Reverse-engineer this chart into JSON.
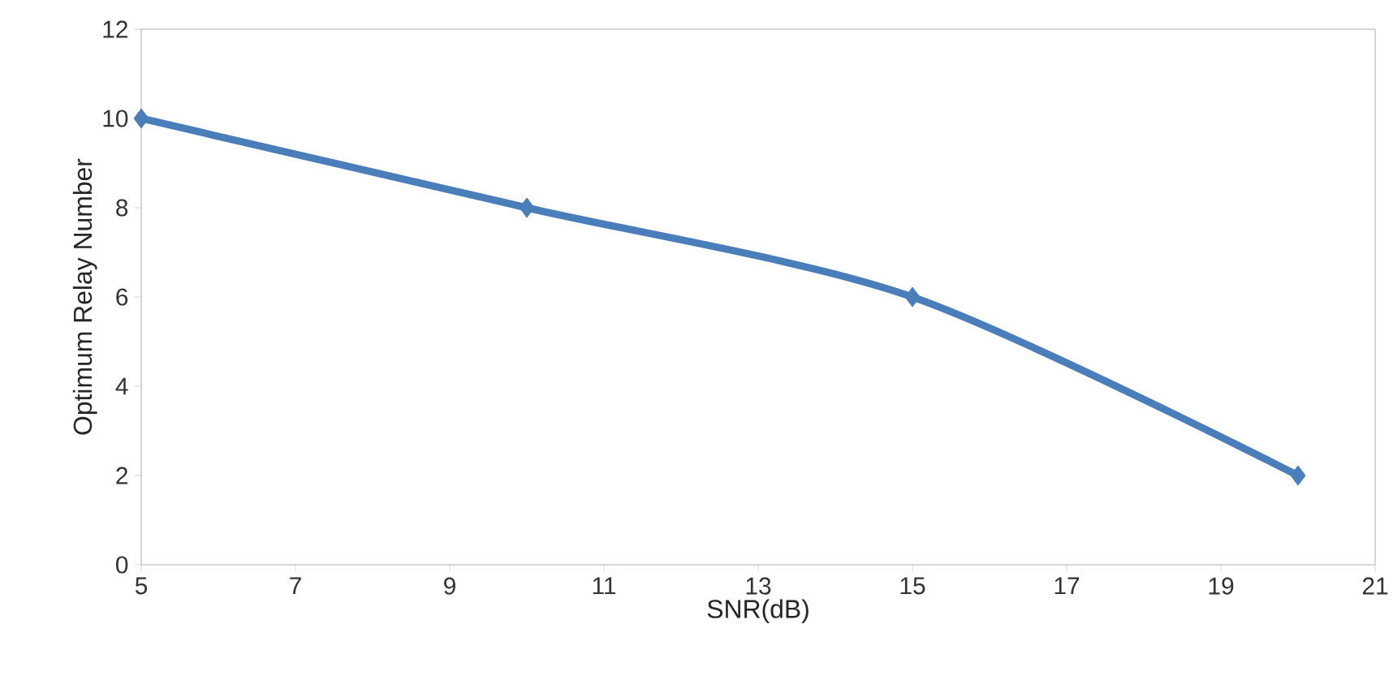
{
  "chart_data": {
    "type": "line",
    "xlabel": "SNR(dB)",
    "ylabel": "Optimum Relay Number",
    "x": [
      5,
      10,
      15,
      20
    ],
    "series": [
      {
        "color": "#4a7ebb",
        "values": [
          10,
          8,
          6,
          2
        ]
      }
    ],
    "xlim": [
      5,
      21
    ],
    "xticks": [
      5,
      7,
      9,
      11,
      13,
      15,
      17,
      19,
      21
    ],
    "ylim": [
      0,
      12
    ],
    "yticks": [
      0,
      2,
      4,
      6,
      8,
      10,
      12
    ],
    "marker": "diamond",
    "line_style": "solid",
    "grid": false
  }
}
